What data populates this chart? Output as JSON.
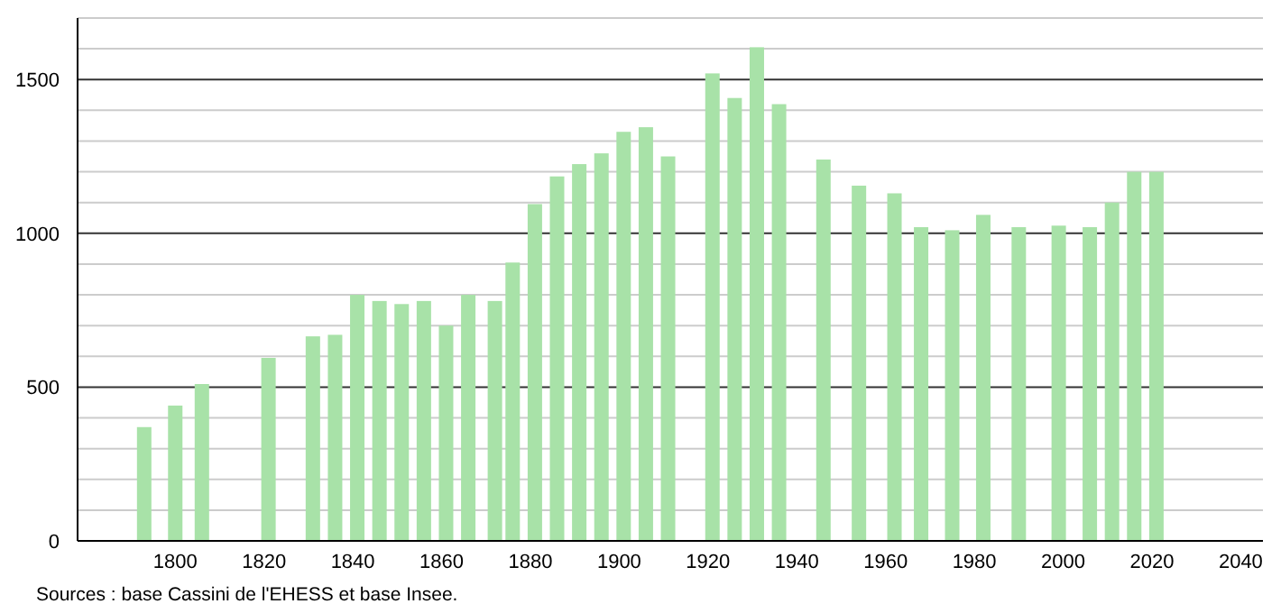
{
  "chart_data": {
    "type": "bar",
    "x": [
      1793,
      1800,
      1806,
      1821,
      1831,
      1836,
      1841,
      1846,
      1851,
      1856,
      1861,
      1866,
      1872,
      1876,
      1881,
      1886,
      1891,
      1896,
      1901,
      1906,
      1911,
      1921,
      1926,
      1931,
      1936,
      1946,
      1954,
      1962,
      1968,
      1975,
      1982,
      1990,
      1999,
      2006,
      2011,
      2016,
      2021
    ],
    "values": [
      370,
      440,
      510,
      595,
      665,
      670,
      800,
      780,
      770,
      780,
      700,
      800,
      780,
      905,
      1095,
      1185,
      1225,
      1260,
      1330,
      1345,
      1250,
      1520,
      1440,
      1605,
      1420,
      1240,
      1155,
      1130,
      1020,
      1010,
      1060,
      1020,
      1025,
      1020,
      1100,
      1200,
      1200
    ],
    "color": "#a8e2a8",
    "xlim": [
      1778,
      2045
    ],
    "xticks": [
      1800,
      1820,
      1840,
      1860,
      1880,
      1900,
      1920,
      1940,
      1960,
      1980,
      2000,
      2020,
      2040
    ],
    "ylim": [
      0,
      1700
    ],
    "yticks": [
      0,
      {
        "value": 100,
        "label": null
      },
      {
        "value": 200,
        "label": null
      },
      {
        "value": 300,
        "label": null
      },
      {
        "value": 400,
        "label": null
      },
      500,
      {
        "value": 600,
        "label": null
      },
      {
        "value": 700,
        "label": null
      },
      {
        "value": 800,
        "label": null
      },
      {
        "value": 900,
        "label": null
      },
      1000,
      {
        "value": 1100,
        "label": null
      },
      {
        "value": 1200,
        "label": null
      },
      {
        "value": 1300,
        "label": null
      },
      {
        "value": 1400,
        "label": null
      },
      1500,
      {
        "value": 1600,
        "label": null
      },
      {
        "value": 1700,
        "label": null
      }
    ],
    "grid": "y",
    "annotations": [
      "Sources : base Cassini de l'EHESS et base Insee."
    ]
  }
}
